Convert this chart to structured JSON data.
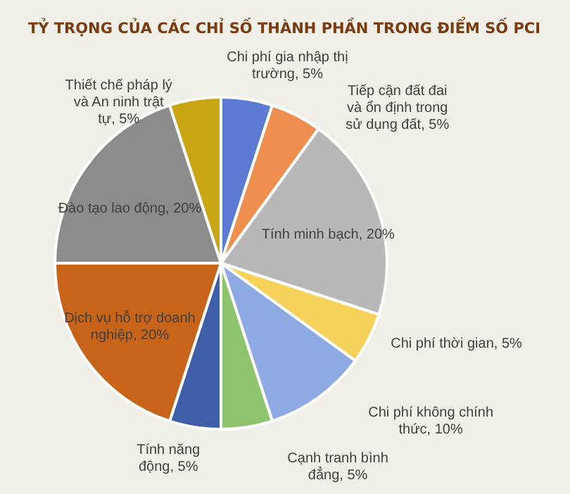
{
  "chart_data": {
    "type": "pie",
    "title": "TỶ TRỌNG CỦA CÁC CHỈ SỐ THÀNH PHẦN TRONG ĐIỂM SỐ PCI",
    "categories": [
      "Chi phí gia nhập thị trường",
      "Tiếp cận đất đai và ổn định trong sử dụng đất",
      "Tính minh bạch",
      "Chi phí thời gian",
      "Chi phí không chính thức",
      "Cạnh tranh bình đẳng",
      "Tính năng động",
      "Dịch vụ hỗ trợ doanh nghiệp",
      "Đào tạo lao động",
      "Thiết chế pháp lý và An ninh trật tự"
    ],
    "values": [
      5,
      5,
      20,
      5,
      10,
      5,
      5,
      20,
      20,
      5
    ],
    "value_labels": [
      "5%",
      "5%",
      "20%",
      "5%",
      "10%",
      "5%",
      "5%",
      "20%",
      "20%",
      "5%"
    ],
    "colors": [
      "#5b7bd5",
      "#ee8f4f",
      "#b8b8b8",
      "#f6d25a",
      "#8eaae3",
      "#8fc46f",
      "#3f5ea8",
      "#c8641a",
      "#8c8c8c",
      "#c9a514"
    ],
    "legend": false
  }
}
